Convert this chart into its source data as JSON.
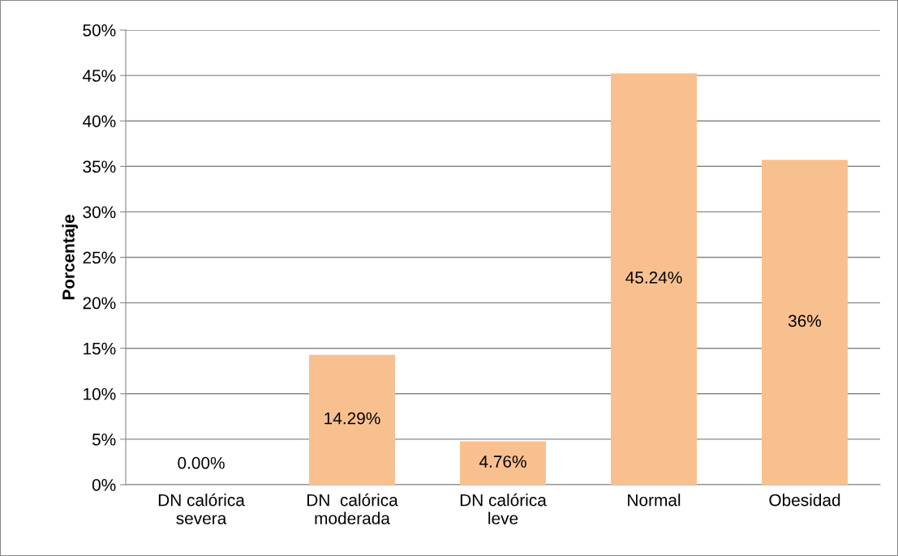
{
  "chart_data": {
    "type": "bar",
    "ylabel": "Porcentaje",
    "categories": [
      "DN calórica\nsevera",
      "DN  calórica\nmoderada",
      "DN calórica\nleve",
      "Normal",
      "Obesidad"
    ],
    "values": [
      0,
      14.29,
      4.76,
      45.24,
      35.71
    ],
    "value_labels": [
      "0.00%",
      "14.29%",
      "4.76%",
      "45.24%",
      "36%"
    ],
    "color": "#f9c08f",
    "ylim": [
      0,
      50
    ],
    "yticks": [
      {
        "value": 0,
        "label": "0%"
      },
      {
        "value": 5,
        "label": "5%"
      },
      {
        "value": 10,
        "label": "10%"
      },
      {
        "value": 15,
        "label": "15%"
      },
      {
        "value": 20,
        "label": "20%"
      },
      {
        "value": 25,
        "label": "25%"
      },
      {
        "value": 30,
        "label": "30%"
      },
      {
        "value": 35,
        "label": "35%"
      },
      {
        "value": 40,
        "label": "40%"
      },
      {
        "value": 45,
        "label": "45%"
      },
      {
        "value": 50,
        "label": "50%"
      }
    ],
    "grid": "y",
    "legend": false
  }
}
